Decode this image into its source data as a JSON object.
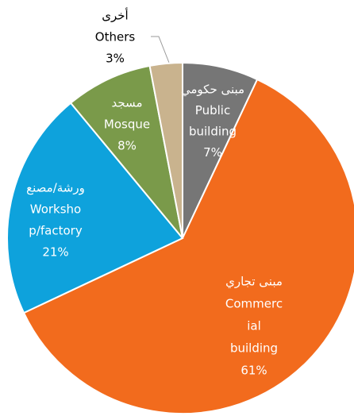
{
  "chart_data": {
    "type": "pie",
    "categories": [
      [
        "مبنى حكومي",
        "Public",
        "building"
      ],
      [
        "مبنى تجاري",
        "Commerc",
        "ial",
        "building"
      ],
      [
        "ورشة/مصنع",
        "Worksho",
        "p/factory"
      ],
      [
        "مسجد",
        "Mosque"
      ],
      [
        "أخرى",
        "Others"
      ]
    ],
    "values": [
      7,
      61,
      21,
      8,
      3
    ],
    "value_labels": [
      "7%",
      "61%",
      "21%",
      "8%",
      "3%"
    ],
    "colors": [
      "#767676",
      "#f26b1d",
      "#0ea2dc",
      "#7a9a4a",
      "#c9b38e"
    ]
  }
}
